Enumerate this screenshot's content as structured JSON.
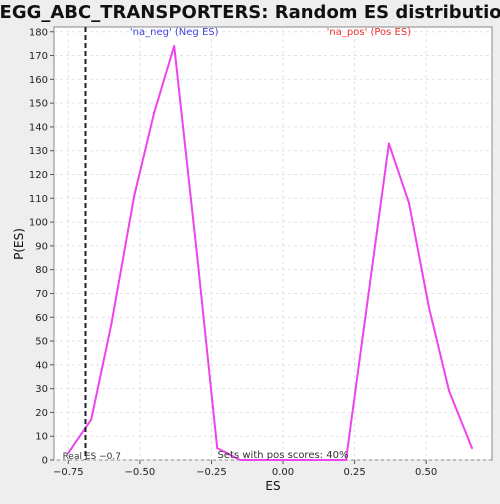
{
  "chart_data": {
    "type": "line",
    "title": "KEGG_ABC_TRANSPORTERS: Random ES distribution",
    "xlabel": "ES",
    "ylabel": "P(ES)",
    "xlim": [
      -0.8,
      0.73
    ],
    "ylim": [
      0,
      182
    ],
    "x_ticks": [
      -0.75,
      -0.5,
      -0.25,
      0.0,
      0.25,
      0.5
    ],
    "x_tick_labels": [
      "−0.75",
      "−0.50",
      "−0.25",
      "0.00",
      "0.25",
      "0.50"
    ],
    "y_ticks": [
      0,
      10,
      20,
      30,
      40,
      50,
      60,
      70,
      80,
      90,
      100,
      110,
      120,
      130,
      140,
      150,
      160,
      170,
      180
    ],
    "grid": true,
    "series": [
      {
        "color": "#ee44ee",
        "x": [
          -0.75,
          -0.67,
          -0.6,
          -0.52,
          -0.45,
          -0.38,
          -0.3,
          -0.23,
          -0.15,
          -0.08,
          0.0,
          0.07,
          0.14,
          0.22,
          0.29,
          0.37,
          0.44,
          0.51,
          0.58,
          0.66
        ],
        "y": [
          3,
          17,
          57,
          111,
          146,
          174,
          86,
          5,
          0,
          0,
          0,
          0,
          0,
          0,
          62,
          133,
          108,
          64,
          29,
          5
        ]
      }
    ],
    "real_es": {
      "x": -0.69,
      "label": "Real ES −0.7"
    },
    "annotations": [
      {
        "text": "'na_neg' (Neg ES)",
        "x": -0.38,
        "y": 180,
        "color": "#4444dd"
      },
      {
        "text": "'na_pos' (Pos ES)",
        "x": 0.3,
        "y": 180,
        "color": "#ee3333"
      },
      {
        "text": "Sets with pos scores: 40%",
        "x": 0.0,
        "y": 2,
        "color": "#333333"
      }
    ]
  }
}
